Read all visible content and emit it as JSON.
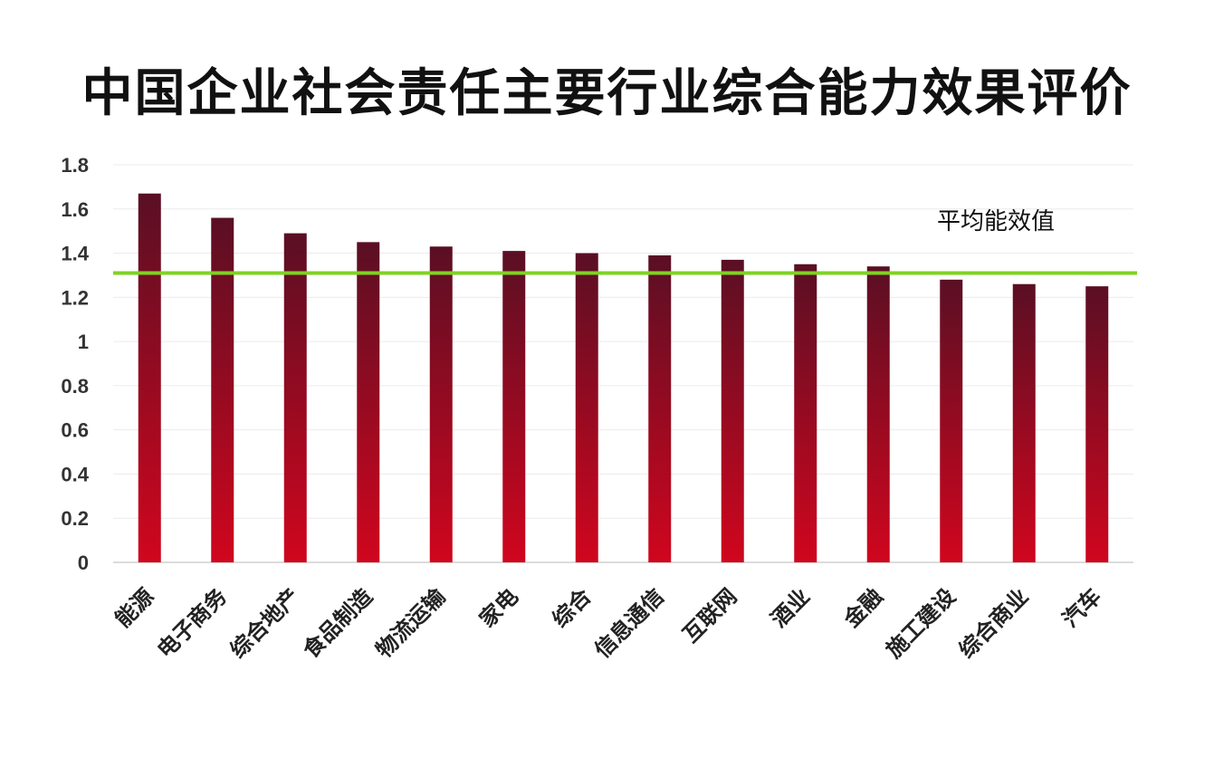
{
  "chart_data": {
    "type": "bar",
    "title": "中国企业社会责任主要行业综合能力效果评价",
    "categories": [
      "能源",
      "电子商务",
      "综合地产",
      "食品制造",
      "物流运输",
      "家电",
      "综合",
      "信息通信",
      "互联网",
      "酒业",
      "金融",
      "施工建设",
      "综合商业",
      "汽车"
    ],
    "values": [
      1.67,
      1.56,
      1.49,
      1.45,
      1.43,
      1.41,
      1.4,
      1.39,
      1.37,
      1.35,
      1.34,
      1.28,
      1.26,
      1.25
    ],
    "ylim": [
      0,
      1.8
    ],
    "yticks": [
      "0",
      "0.2",
      "0.4",
      "0.6",
      "0.8",
      "1",
      "1.2",
      "1.4",
      "1.6",
      "1.8"
    ],
    "xlabel": "",
    "ylabel": "",
    "grid": true,
    "reference_line": {
      "label": "平均能效值",
      "value": 1.31,
      "color": "#7ED321"
    },
    "bar_color_top": "#5A0F24",
    "bar_color_bottom": "#D0061E"
  }
}
